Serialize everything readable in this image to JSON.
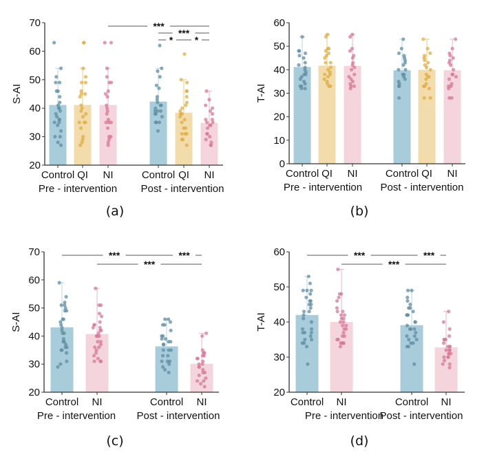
{
  "colors": {
    "Control": {
      "bar": "#a8ccd9",
      "dot": "#5f8ea3",
      "err": "#bcd6e0"
    },
    "QI": {
      "bar": "#f3dcab",
      "dot": "#dfae44",
      "err": "#ecc97a"
    },
    "NI": {
      "bar": "#f4d5dd",
      "dot": "#d57898",
      "err": "#e9b6c6"
    },
    "axis": "#333333",
    "sig_line": "#555555"
  },
  "chart_data": [
    {
      "panel_label": "(a)",
      "type": "bar",
      "ylabel": "S-AI",
      "ylim": [
        20,
        70
      ],
      "yticks": [
        20,
        30,
        40,
        50,
        60,
        70
      ],
      "groups": [
        {
          "label": "Pre - intervention",
          "bars": [
            {
              "category": "Control",
              "mean": 41,
              "sd_top": 54,
              "points": [
                63,
                54,
                51,
                49,
                49,
                46,
                46,
                44,
                42,
                41,
                40,
                40,
                39,
                38,
                37,
                36,
                36,
                35,
                35,
                34,
                32,
                30,
                30,
                28,
                27
              ]
            },
            {
              "category": "QI",
              "mean": 41,
              "sd_top": 54,
              "points": [
                63,
                63,
                54,
                51,
                49,
                49,
                46,
                45,
                45,
                44,
                41,
                40,
                39,
                38,
                37,
                35,
                35,
                35,
                33,
                30,
                29,
                28,
                27
              ]
            },
            {
              "category": "NI",
              "mean": 41,
              "sd_top": 54,
              "points": [
                63,
                63,
                54,
                51,
                49,
                49,
                46,
                45,
                44,
                41,
                40,
                39,
                38,
                36,
                35,
                35,
                35,
                33,
                30,
                30,
                29,
                28,
                27
              ]
            }
          ]
        },
        {
          "label": "Post - intervention",
          "bars": [
            {
              "category": "Control",
              "mean": 42.2,
              "sd_top": 54,
              "points": [
                62,
                54,
                53,
                51,
                48,
                47,
                44,
                43,
                42,
                41,
                41,
                40,
                39,
                39,
                39,
                38,
                38,
                37,
                35,
                35,
                35,
                32
              ]
            },
            {
              "category": "QI",
              "mean": 38.3,
              "sd_top": 50,
              "points": [
                59,
                50,
                49,
                46,
                46,
                44,
                42,
                41,
                40,
                39,
                38,
                38,
                37,
                36,
                35,
                33,
                33,
                31,
                31,
                31,
                29,
                29,
                27
              ]
            },
            {
              "category": "NI",
              "mean": 34.7,
              "sd_top": 46,
              "points": [
                46,
                43,
                41,
                40,
                39,
                38,
                36,
                36,
                35,
                35,
                34,
                34,
                33,
                31,
                31,
                30,
                29,
                28,
                27,
                27
              ]
            }
          ]
        }
      ],
      "significance": [
        {
          "from": [
            0,
            2
          ],
          "to": [
            1,
            2
          ],
          "label": "***",
          "level": 0
        },
        {
          "from": [
            1,
            0
          ],
          "to": [
            1,
            2
          ],
          "label": "***",
          "level": 1
        },
        {
          "from": [
            1,
            0
          ],
          "to": [
            1,
            1
          ],
          "label": "*",
          "level": 2
        },
        {
          "from": [
            1,
            1
          ],
          "to": [
            1,
            2
          ],
          "label": "*",
          "level": 2
        }
      ]
    },
    {
      "panel_label": "(b)",
      "type": "bar",
      "ylabel": "T-AI",
      "ylim": [
        0,
        60
      ],
      "yticks": [
        0,
        10,
        20,
        30,
        40,
        50,
        60
      ],
      "groups": [
        {
          "label": "Pre - intervention",
          "bars": [
            {
              "category": "Control",
              "mean": 41,
              "sd_top": 54,
              "points": [
                54,
                48,
                48,
                47,
                46,
                45,
                43,
                42,
                41,
                40,
                39,
                38,
                38,
                37,
                36,
                35,
                34,
                33,
                33,
                32,
                32
              ]
            },
            {
              "category": "QI",
              "mean": 41.6,
              "sd_top": 55,
              "points": [
                55,
                54,
                49,
                49,
                48,
                47,
                46,
                45,
                43,
                43,
                41,
                40,
                39,
                38,
                38,
                37,
                36,
                35,
                34,
                33,
                33
              ]
            },
            {
              "category": "NI",
              "mean": 41.5,
              "sd_top": 55,
              "points": [
                55,
                54,
                49,
                48,
                46,
                45,
                43,
                42,
                41,
                40,
                38,
                37,
                36,
                35,
                34,
                33,
                33,
                32
              ]
            }
          ]
        },
        {
          "label": "Post - intervention",
          "bars": [
            {
              "category": "Control",
              "mean": 39.6,
              "sd_top": 53,
              "points": [
                53,
                49,
                47,
                46,
                45,
                44,
                43,
                42,
                40,
                40,
                38,
                38,
                37,
                36,
                35,
                34,
                33,
                33,
                28
              ]
            },
            {
              "category": "QI",
              "mean": 39.8,
              "sd_top": 53,
              "points": [
                53,
                49,
                47,
                46,
                45,
                44,
                43,
                42,
                41,
                40,
                38,
                37,
                37,
                36,
                34,
                33,
                33,
                32,
                28,
                28
              ]
            },
            {
              "category": "NI",
              "mean": 39.6,
              "sd_top": 53,
              "points": [
                53,
                49,
                47,
                46,
                45,
                44,
                43,
                42,
                40,
                38,
                38,
                37,
                36,
                34,
                33,
                33,
                32,
                28,
                28
              ]
            }
          ]
        }
      ],
      "significance": []
    },
    {
      "panel_label": "(c)",
      "type": "bar",
      "ylabel": "S-AI",
      "ylim": [
        20,
        70
      ],
      "yticks": [
        20,
        30,
        40,
        50,
        60,
        70
      ],
      "groups": [
        {
          "label": "Pre - intervention",
          "bars": [
            {
              "category": "Control",
              "mean": 43,
              "sd_top": 59,
              "points": [
                59,
                54,
                52,
                51,
                51,
                50,
                49,
                49,
                46,
                46,
                45,
                44,
                43,
                42,
                41,
                41,
                39,
                38,
                38,
                37,
                36,
                36,
                35,
                35,
                34,
                31,
                30,
                29
              ]
            },
            {
              "category": "NI",
              "mean": 40.6,
              "sd_top": 57,
              "points": [
                57,
                51,
                51,
                48,
                47,
                45,
                44,
                44,
                43,
                43,
                42,
                42,
                41,
                40,
                40,
                40,
                38,
                38,
                37,
                36,
                36,
                35,
                34,
                33,
                32,
                31,
                31,
                31
              ]
            }
          ]
        },
        {
          "label": "Post - intervention",
          "bars": [
            {
              "category": "Control",
              "mean": 36.2,
              "sd_top": 46,
              "points": [
                46,
                46,
                45,
                44,
                44,
                42,
                40,
                40,
                39,
                39,
                38,
                38,
                37,
                37,
                35,
                35,
                35,
                33,
                33,
                31,
                31,
                31,
                30,
                29,
                28,
                27
              ]
            },
            {
              "category": "NI",
              "mean": 30,
              "sd_top": 41,
              "points": [
                41,
                40,
                35,
                34,
                34,
                33,
                33,
                32,
                32,
                31,
                30,
                30,
                29,
                29,
                28,
                27,
                27,
                26,
                25,
                24,
                24,
                23,
                22
              ]
            }
          ]
        }
      ],
      "significance": [
        {
          "from": [
            0,
            0
          ],
          "to": [
            1,
            0
          ],
          "label": "***",
          "level": 0
        },
        {
          "from": [
            1,
            0
          ],
          "to": [
            1,
            1
          ],
          "label": "***",
          "level": 0
        },
        {
          "from": [
            0,
            1
          ],
          "to": [
            1,
            1
          ],
          "label": "***",
          "level": 1
        }
      ]
    },
    {
      "panel_label": "(d)",
      "type": "bar",
      "ylabel": "T-AI",
      "ylim": [
        20,
        60
      ],
      "yticks": [
        20,
        30,
        40,
        50,
        60
      ],
      "groups": [
        {
          "label": "Pre - intervention",
          "bars": [
            {
              "category": "Control",
              "mean": 41.9,
              "sd_top": 53,
              "points": [
                53,
                51,
                49,
                49,
                49,
                48,
                47,
                46,
                46,
                45,
                45,
                44,
                43,
                43,
                42,
                41,
                40,
                38,
                38,
                37,
                37,
                37,
                36,
                35,
                35,
                34,
                34,
                33,
                28
              ]
            },
            {
              "category": "NI",
              "mean": 39.9,
              "sd_top": 55,
              "points": [
                55,
                48,
                48,
                47,
                46,
                44,
                43,
                43,
                42,
                42,
                41,
                41,
                40,
                40,
                39,
                39,
                38,
                38,
                37,
                36,
                36,
                35,
                35,
                34,
                34,
                34,
                34,
                33
              ]
            }
          ]
        },
        {
          "label": "Post - intervention",
          "bars": [
            {
              "category": "Control",
              "mean": 39,
              "sd_top": 49,
              "points": [
                49,
                49,
                47,
                46,
                45,
                44,
                44,
                43,
                42,
                42,
                42,
                40,
                40,
                39,
                38,
                38,
                38,
                37,
                36,
                36,
                35,
                35,
                34,
                34,
                33,
                33,
                28
              ]
            },
            {
              "category": "NI",
              "mean": 32.7,
              "sd_top": 43,
              "points": [
                43,
                40,
                38,
                36,
                35,
                35,
                35,
                34,
                33,
                33,
                33,
                32,
                32,
                32,
                31,
                31,
                31,
                30,
                30,
                30,
                29,
                28,
                28,
                27
              ]
            }
          ]
        }
      ],
      "significance": [
        {
          "from": [
            0,
            0
          ],
          "to": [
            1,
            0
          ],
          "label": "***",
          "level": 0
        },
        {
          "from": [
            1,
            0
          ],
          "to": [
            1,
            1
          ],
          "label": "***",
          "level": 0
        },
        {
          "from": [
            0,
            1
          ],
          "to": [
            1,
            1
          ],
          "label": "***",
          "level": 1
        }
      ]
    }
  ]
}
